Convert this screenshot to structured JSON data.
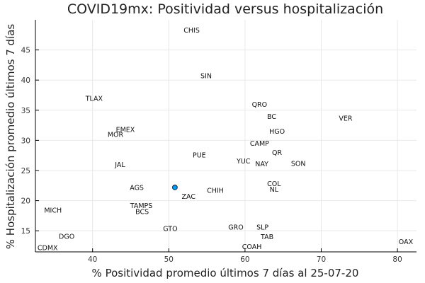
{
  "chart_data": {
    "type": "scatter",
    "title": "COVID19mx: Positividad versus hospitalización",
    "xlabel": "% Positividad promedio últimos 7 días al 25-07-20",
    "ylabel": "% Hospitalización promedio últimos 7 días",
    "xlim": [
      32.5,
      82.5
    ],
    "ylim": [
      11.5,
      50.0
    ],
    "xticks": [
      40,
      50,
      60,
      70,
      80
    ],
    "yticks": [
      15,
      20,
      25,
      30,
      35,
      40,
      45
    ],
    "grid": true,
    "legend": "none",
    "marker_color": "#009AFA",
    "labels": [
      {
        "text": "CHIS",
        "x": 53.0,
        "y": 48.3
      },
      {
        "text": "SIN",
        "x": 54.9,
        "y": 40.7
      },
      {
        "text": "TLAX",
        "x": 40.2,
        "y": 37.0
      },
      {
        "text": "QRO",
        "x": 61.9,
        "y": 36.0
      },
      {
        "text": "BC",
        "x": 63.5,
        "y": 34.0
      },
      {
        "text": "VER",
        "x": 73.2,
        "y": 33.7
      },
      {
        "text": "EMEX",
        "x": 44.3,
        "y": 31.8
      },
      {
        "text": "MOR",
        "x": 43.0,
        "y": 31.0
      },
      {
        "text": "HGO",
        "x": 64.2,
        "y": 31.5
      },
      {
        "text": "CAMP",
        "x": 61.9,
        "y": 29.5
      },
      {
        "text": "QR",
        "x": 64.2,
        "y": 28.0
      },
      {
        "text": "PUE",
        "x": 54.0,
        "y": 27.6
      },
      {
        "text": "YUC",
        "x": 59.8,
        "y": 26.6
      },
      {
        "text": "NAY",
        "x": 62.2,
        "y": 26.1
      },
      {
        "text": "SON",
        "x": 67.0,
        "y": 26.2
      },
      {
        "text": "JAL",
        "x": 43.6,
        "y": 26.0
      },
      {
        "text": "COL",
        "x": 63.8,
        "y": 22.8
      },
      {
        "text": "NL",
        "x": 63.8,
        "y": 21.9
      },
      {
        "text": "AGS",
        "x": 45.8,
        "y": 22.2
      },
      {
        "text": "CHIH",
        "x": 56.1,
        "y": 21.7
      },
      {
        "text": "ZAC",
        "x": 52.6,
        "y": 20.7
      },
      {
        "text": "TAMPS",
        "x": 46.4,
        "y": 19.2
      },
      {
        "text": "BCS",
        "x": 46.5,
        "y": 18.2
      },
      {
        "text": "MICH",
        "x": 34.8,
        "y": 18.4
      },
      {
        "text": "GTO",
        "x": 50.2,
        "y": 15.4
      },
      {
        "text": "GRO",
        "x": 58.8,
        "y": 15.6
      },
      {
        "text": "SLP",
        "x": 62.3,
        "y": 15.6
      },
      {
        "text": "TAB",
        "x": 62.9,
        "y": 14.0
      },
      {
        "text": "DGO",
        "x": 36.6,
        "y": 14.1
      },
      {
        "text": "OAX",
        "x": 81.1,
        "y": 13.2
      },
      {
        "text": "COAH",
        "x": 60.9,
        "y": 12.4
      },
      {
        "text": "CDMX",
        "x": 34.1,
        "y": 12.2
      }
    ],
    "points": [
      {
        "x": 50.8,
        "y": 22.2
      }
    ]
  }
}
